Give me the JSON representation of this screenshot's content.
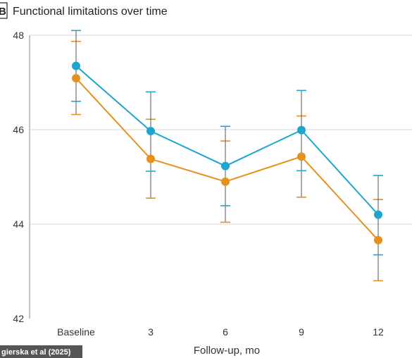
{
  "panel_letter": "B",
  "credit": "gierska et al (2025)",
  "colors": {
    "series_1": "#1ea6d1",
    "series_2": "#e8901e",
    "gridline": "#d9d9d9",
    "errorbar_stem": "#555555",
    "credit_bg": "#555555"
  },
  "chart_data": {
    "type": "line",
    "title": "Functional limitations over time",
    "xlabel": "Follow-up, mo",
    "ylabel": "",
    "categories": [
      "Baseline",
      "3",
      "6",
      "9",
      "12"
    ],
    "ylim": [
      42,
      48
    ],
    "yticks": [
      42,
      44,
      46,
      48
    ],
    "grid": "horizontal",
    "series": [
      {
        "color": "#1ea6d1",
        "values": [
          47.35,
          45.97,
          45.23,
          45.99,
          44.2
        ],
        "err_low": [
          46.6,
          45.12,
          44.39,
          45.13,
          43.35
        ],
        "err_high": [
          48.1,
          46.8,
          46.07,
          46.83,
          45.03
        ]
      },
      {
        "color": "#e8901e",
        "values": [
          47.09,
          45.38,
          44.9,
          45.43,
          43.66
        ],
        "err_low": [
          46.32,
          44.55,
          44.04,
          44.57,
          42.8
        ],
        "err_high": [
          47.87,
          46.22,
          45.76,
          46.29,
          44.52
        ]
      }
    ]
  }
}
